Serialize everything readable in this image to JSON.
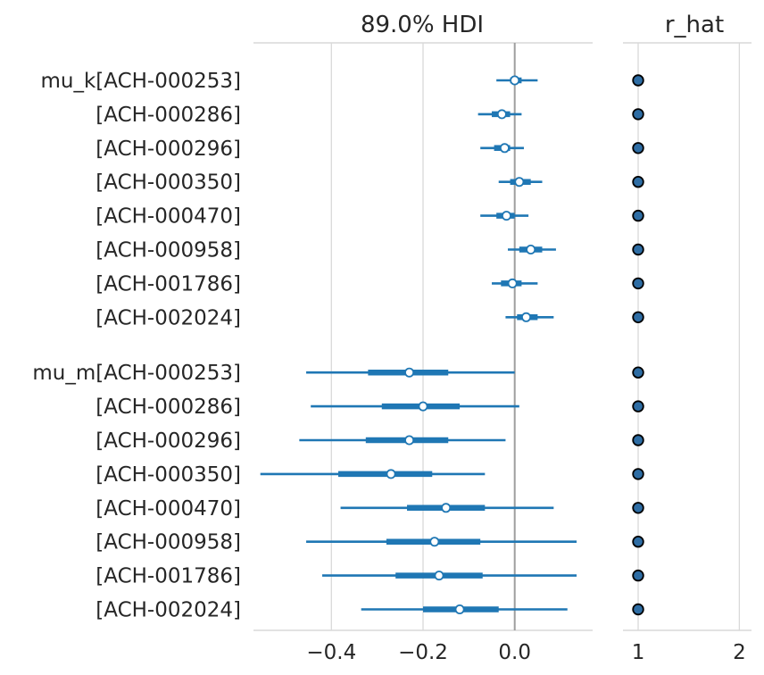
{
  "chart_data": [
    {
      "type": "forest",
      "title": "89.0% HDI",
      "xlim": [
        -0.57,
        0.17
      ],
      "xticks": [
        -0.4,
        -0.2,
        0.0
      ],
      "xtick_labels": [
        "−0.4",
        "−0.2",
        "0.0"
      ],
      "reference_line": 0.0,
      "grid": true,
      "groups": [
        {
          "name": "mu_k",
          "rows": [
            {
              "label": "[ACH-000253]",
              "hdi": [
                -0.04,
                0.05
              ],
              "iqr": [
                -0.01,
                0.015
              ],
              "mean": 0.0
            },
            {
              "label": "[ACH-000286]",
              "hdi": [
                -0.08,
                0.015
              ],
              "iqr": [
                -0.05,
                -0.01
              ],
              "mean": -0.028
            },
            {
              "label": "[ACH-000296]",
              "hdi": [
                -0.075,
                0.02
              ],
              "iqr": [
                -0.045,
                -0.01
              ],
              "mean": -0.022
            },
            {
              "label": "[ACH-000350]",
              "hdi": [
                -0.035,
                0.06
              ],
              "iqr": [
                -0.01,
                0.035
              ],
              "mean": 0.01
            },
            {
              "label": "[ACH-000470]",
              "hdi": [
                -0.075,
                0.03
              ],
              "iqr": [
                -0.04,
                0.0
              ],
              "mean": -0.018
            },
            {
              "label": "[ACH-000958]",
              "hdi": [
                -0.015,
                0.09
              ],
              "iqr": [
                0.01,
                0.06
              ],
              "mean": 0.035
            },
            {
              "label": "[ACH-001786]",
              "hdi": [
                -0.05,
                0.05
              ],
              "iqr": [
                -0.03,
                0.015
              ],
              "mean": -0.005
            },
            {
              "label": "[ACH-002024]",
              "hdi": [
                -0.02,
                0.085
              ],
              "iqr": [
                0.005,
                0.05
              ],
              "mean": 0.025
            }
          ]
        },
        {
          "name": "mu_m",
          "rows": [
            {
              "label": "[ACH-000253]",
              "hdi": [
                -0.455,
                0.0
              ],
              "iqr": [
                -0.32,
                -0.145
              ],
              "mean": -0.23
            },
            {
              "label": "[ACH-000286]",
              "hdi": [
                -0.445,
                0.01
              ],
              "iqr": [
                -0.29,
                -0.12
              ],
              "mean": -0.2
            },
            {
              "label": "[ACH-000296]",
              "hdi": [
                -0.47,
                -0.02
              ],
              "iqr": [
                -0.325,
                -0.145
              ],
              "mean": -0.23
            },
            {
              "label": "[ACH-000350]",
              "hdi": [
                -0.555,
                -0.065
              ],
              "iqr": [
                -0.385,
                -0.18
              ],
              "mean": -0.27
            },
            {
              "label": "[ACH-000470]",
              "hdi": [
                -0.38,
                0.085
              ],
              "iqr": [
                -0.235,
                -0.065
              ],
              "mean": -0.15
            },
            {
              "label": "[ACH-000958]",
              "hdi": [
                -0.455,
                0.135
              ],
              "iqr": [
                -0.28,
                -0.075
              ],
              "mean": -0.175
            },
            {
              "label": "[ACH-001786]",
              "hdi": [
                -0.42,
                0.135
              ],
              "iqr": [
                -0.26,
                -0.07
              ],
              "mean": -0.165
            },
            {
              "label": "[ACH-002024]",
              "hdi": [
                -0.335,
                0.115
              ],
              "iqr": [
                -0.2,
                -0.035
              ],
              "mean": -0.12
            }
          ]
        }
      ],
      "colors": {
        "line": "#1f77b4",
        "marker_face": "#ffffff"
      }
    },
    {
      "type": "scatter",
      "title": "r_hat",
      "xlim": [
        0.85,
        2.12
      ],
      "xticks": [
        1,
        2
      ],
      "xtick_labels": [
        "1",
        "2"
      ],
      "grid": true,
      "values": [
        1.0,
        1.0,
        1.0,
        1.0,
        1.0,
        1.0,
        1.0,
        1.0,
        1.0,
        1.0,
        1.0,
        1.0,
        1.0,
        1.0,
        1.0,
        1.0
      ],
      "colors": {
        "marker_face": "#2e6da4",
        "marker_edge": "#000000"
      }
    }
  ]
}
